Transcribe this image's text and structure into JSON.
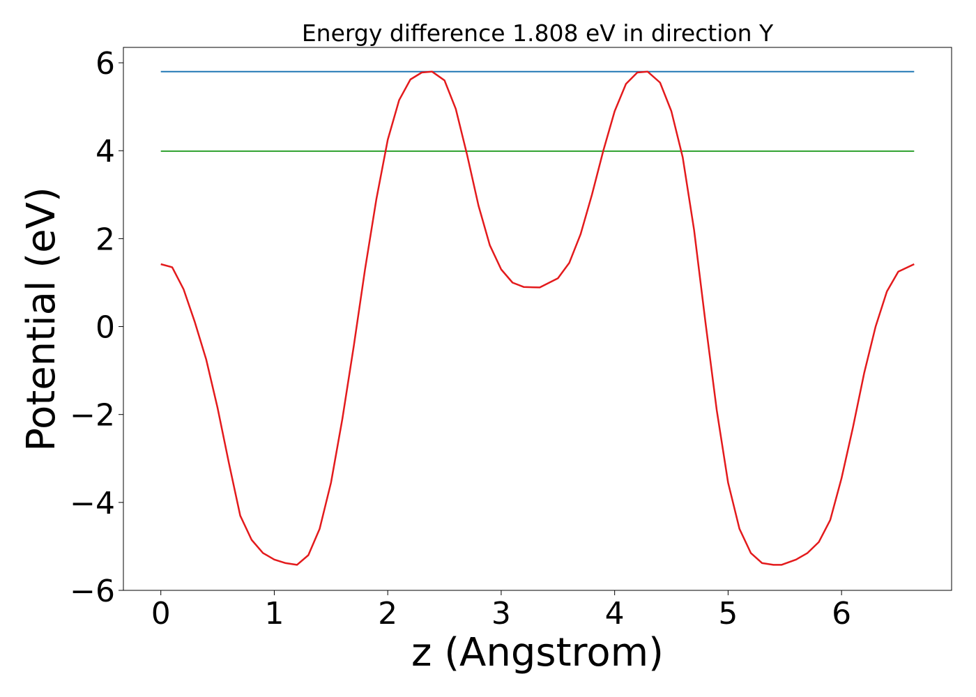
{
  "chart_data": {
    "type": "line",
    "title": "Energy difference 1.808 eV in direction Y",
    "xlabel": "z (Angstrom)",
    "ylabel": "Potential (eV)",
    "xlim": [
      -0.33,
      6.97
    ],
    "ylim": [
      -6.0,
      6.35
    ],
    "xticks": [
      0,
      1,
      2,
      3,
      4,
      5,
      6
    ],
    "xtick_labels": [
      "0",
      "1",
      "2",
      "3",
      "4",
      "5",
      "6"
    ],
    "yticks": [
      -6,
      -4,
      -2,
      0,
      2,
      4,
      6
    ],
    "ytick_labels": [
      "−6",
      "−4",
      "−2",
      "0",
      "2",
      "4",
      "6"
    ],
    "grid": false,
    "series": [
      {
        "color": "#1f77b4",
        "x": [
          0,
          6.64
        ],
        "y": [
          5.8,
          5.8
        ]
      },
      {
        "color": "#2ca02c",
        "x": [
          0,
          6.64
        ],
        "y": [
          3.99,
          3.99
        ]
      },
      {
        "color": "#e31a1c",
        "x": [
          0,
          0.1,
          0.2,
          0.3,
          0.4,
          0.5,
          0.6,
          0.7,
          0.8,
          0.9,
          1.0,
          1.1,
          1.2,
          1.3,
          1.4,
          1.5,
          1.6,
          1.7,
          1.8,
          1.9,
          2.0,
          2.1,
          2.2,
          2.3,
          2.39,
          2.5,
          2.6,
          2.7,
          2.8,
          2.9,
          3.0,
          3.1,
          3.2,
          3.34,
          3.5,
          3.6,
          3.7,
          3.8,
          3.9,
          4.0,
          4.1,
          4.2,
          4.29,
          4.4,
          4.5,
          4.6,
          4.7,
          4.8,
          4.9,
          5.0,
          5.1,
          5.2,
          5.3,
          5.4,
          5.47,
          5.6,
          5.7,
          5.8,
          5.9,
          6.0,
          6.1,
          6.2,
          6.3,
          6.4,
          6.5,
          6.64
        ],
        "y": [
          1.42,
          1.35,
          0.85,
          0.1,
          -0.75,
          -1.85,
          -3.1,
          -4.3,
          -4.85,
          -5.15,
          -5.3,
          -5.38,
          -5.42,
          -5.2,
          -4.6,
          -3.55,
          -2.1,
          -0.45,
          1.3,
          2.9,
          4.25,
          5.15,
          5.62,
          5.78,
          5.8,
          5.6,
          4.95,
          3.9,
          2.75,
          1.85,
          1.3,
          1.0,
          0.9,
          0.89,
          1.1,
          1.45,
          2.1,
          3.0,
          4.0,
          4.9,
          5.52,
          5.78,
          5.8,
          5.55,
          4.9,
          3.85,
          2.2,
          0.1,
          -1.9,
          -3.55,
          -4.6,
          -5.15,
          -5.38,
          -5.42,
          -5.42,
          -5.3,
          -5.15,
          -4.9,
          -4.4,
          -3.45,
          -2.3,
          -1.05,
          0.0,
          0.8,
          1.25,
          1.42
        ]
      }
    ]
  }
}
